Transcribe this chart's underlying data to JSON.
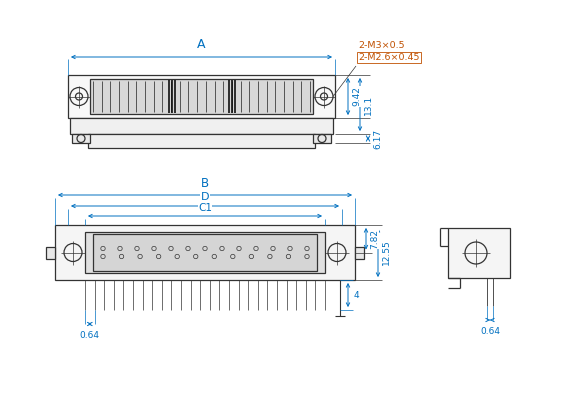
{
  "bg_color": "#ffffff",
  "line_color": "#333333",
  "dim_color": "#0070c0",
  "annotation_color": "#c05000",
  "fig_width": 5.83,
  "fig_height": 4.0,
  "labels": {
    "A": "A",
    "B": "B",
    "C1": "C1",
    "D": "D",
    "dim_9_42": "9.42",
    "dim_13_1": "13.1",
    "dim_6_17": "6.17",
    "dim_7_82": "7.82",
    "dim_12_55": "12.55",
    "dim_4": "4",
    "dim_0_64_left": "0.64",
    "dim_0_64_right": "0.64",
    "anno1": "2-M3×0.5",
    "anno2": "2-M2.6×0.45"
  }
}
